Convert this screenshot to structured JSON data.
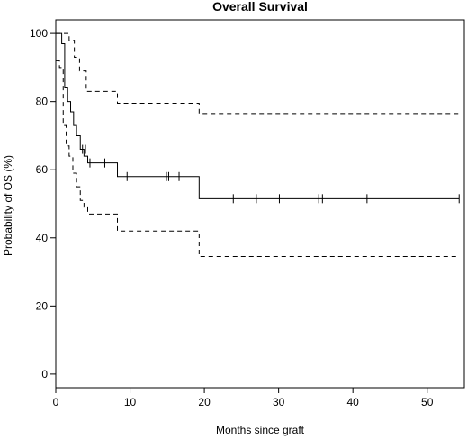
{
  "chart_data": {
    "type": "line",
    "title": "Overall Survival",
    "xlabel": "Months since graft",
    "ylabel": "Probability of OS (%)",
    "xlim": [
      0,
      55
    ],
    "ylim": [
      -4,
      104
    ],
    "xticks": [
      0,
      10,
      20,
      30,
      40,
      50
    ],
    "yticks": [
      0,
      20,
      40,
      60,
      80,
      100
    ],
    "grid": false,
    "series": [
      {
        "style": "solid",
        "color": "#000000",
        "step_x": [
          0,
          0.8,
          1.2,
          1.6,
          2.0,
          2.4,
          2.8,
          3.3,
          3.8,
          4.3,
          8.3,
          19.3,
          54.3
        ],
        "step_y": [
          100,
          97,
          84,
          80,
          77,
          73,
          70,
          66,
          64,
          62,
          58,
          51.5,
          51.5
        ],
        "censor_x": [
          3.6,
          4.0,
          4.6,
          6.6,
          9.6,
          14.9,
          15.2,
          16.6,
          23.9,
          27.0,
          30.1,
          35.4,
          35.9,
          41.9,
          54.3
        ],
        "censor_y": [
          66,
          66,
          62,
          62,
          58,
          58,
          58,
          58,
          51.5,
          51.5,
          51.5,
          51.5,
          51.5,
          51.5,
          51.5
        ]
      },
      {
        "style": "dashed",
        "color": "#000000",
        "step_x": [
          0,
          1.0,
          1.8,
          2.5,
          3.2,
          4.1,
          8.3,
          19.3,
          54.3
        ],
        "step_y": [
          100,
          100,
          98,
          93,
          89,
          83,
          79.5,
          76.5,
          76.5
        ]
      },
      {
        "style": "dashed",
        "color": "#000000",
        "step_x": [
          0,
          0.5,
          1.0,
          1.4,
          1.8,
          2.3,
          2.8,
          3.3,
          3.8,
          4.3,
          8.3,
          19.3,
          54.3
        ],
        "step_y": [
          92,
          90,
          73,
          67,
          64,
          59,
          55,
          51,
          49,
          47,
          42,
          34.5,
          34.5
        ]
      }
    ]
  }
}
